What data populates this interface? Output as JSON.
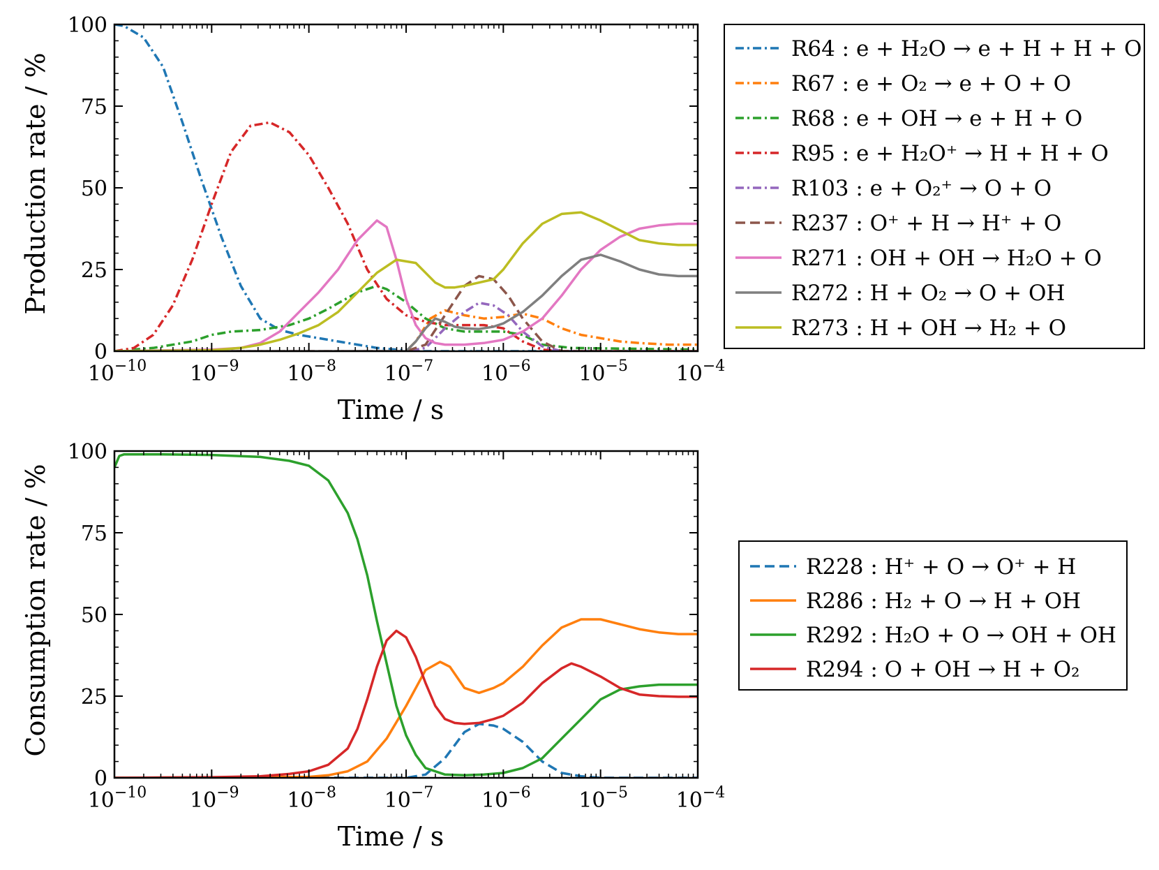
{
  "chart_data": [
    {
      "type": "line",
      "title": "",
      "xscale": "log",
      "xlabel": "Time / s",
      "ylabel": "Production rate / %",
      "xlim": [
        1e-10,
        0.0001
      ],
      "ylim": [
        0,
        100
      ],
      "xticks": [
        {
          "value": 1e-10,
          "base": "10",
          "exp": "−10"
        },
        {
          "value": 1e-09,
          "base": "10",
          "exp": "−9"
        },
        {
          "value": 1e-08,
          "base": "10",
          "exp": "−8"
        },
        {
          "value": 1e-07,
          "base": "10",
          "exp": "−7"
        },
        {
          "value": 1e-06,
          "base": "10",
          "exp": "−6"
        },
        {
          "value": 1e-05,
          "base": "10",
          "exp": "−5"
        },
        {
          "value": 0.0001,
          "base": "10",
          "exp": "−4"
        }
      ],
      "yticks": [
        {
          "value": 0,
          "label": "0"
        },
        {
          "value": 25,
          "label": "25"
        },
        {
          "value": 50,
          "label": "50"
        },
        {
          "value": 75,
          "label": "75"
        },
        {
          "value": 100,
          "label": "100"
        }
      ],
      "legend_position": "right",
      "series": [
        {
          "name": "R64",
          "label": "R64 :  e + H₂O → e + H + H + O",
          "color": "#1f77b4",
          "dash": "dashdot",
          "x": [
            -10,
            -9.9,
            -9.7,
            -9.5,
            -9.3,
            -9.1,
            -8.9,
            -8.7,
            -8.5,
            -8.3,
            -8.1,
            -7.9,
            -7.7,
            -7.5,
            -7.3,
            -7.1,
            -6.9,
            -4.0
          ],
          "y": [
            100,
            99.5,
            96,
            87,
            70,
            52,
            35,
            20,
            10,
            6.5,
            5,
            4,
            3,
            2,
            1,
            0.5,
            0,
            0
          ]
        },
        {
          "name": "R67",
          "label": "R67 :  e + O₂ → e + O + O",
          "color": "#ff7f0e",
          "dash": "dashdot",
          "x": [
            -10,
            -7.0,
            -6.9,
            -6.75,
            -6.6,
            -6.4,
            -6.2,
            -6.0,
            -5.8,
            -5.6,
            -5.4,
            -5.2,
            -5.0,
            -4.8,
            -4.6,
            -4.3,
            -4.0
          ],
          "y": [
            0,
            0,
            3,
            10,
            12.5,
            11,
            10,
            10.5,
            11.5,
            10,
            7,
            5,
            4,
            3,
            2.5,
            2,
            2
          ]
        },
        {
          "name": "R68",
          "label": "R68 :  e + OH → e + H + O",
          "color": "#2ca02c",
          "dash": "dashdot",
          "x": [
            -10,
            -9.6,
            -9.2,
            -9.0,
            -8.8,
            -8.5,
            -8.2,
            -8.0,
            -7.8,
            -7.5,
            -7.3,
            -7.2,
            -7.0,
            -6.8,
            -6.6,
            -6.4,
            -6.2,
            -6.0,
            -5.8,
            -5.6,
            -5.3,
            -4.0
          ],
          "y": [
            0,
            1,
            3,
            5,
            6,
            6.5,
            8,
            10,
            13,
            18,
            20,
            19,
            15,
            10,
            7,
            6,
            6,
            6,
            5,
            2,
            1,
            0.5
          ]
        },
        {
          "name": "R95",
          "label": "R95 :  e + H₂O⁺ → H + H + O",
          "color": "#d62728",
          "dash": "dashdot",
          "x": [
            -10,
            -9.8,
            -9.6,
            -9.4,
            -9.2,
            -9.0,
            -8.8,
            -8.6,
            -8.4,
            -8.2,
            -8.0,
            -7.8,
            -7.6,
            -7.4,
            -7.2,
            -7.0,
            -6.8,
            -6.6,
            -6.4,
            -6.2,
            -6.0,
            -5.8,
            -5.6,
            -5.4,
            -4.0
          ],
          "y": [
            0,
            1,
            5,
            14,
            28,
            45,
            61,
            69,
            70,
            67,
            60,
            50,
            39,
            25,
            16,
            11,
            9,
            8,
            8,
            8,
            7,
            3,
            0.5,
            0,
            0
          ]
        },
        {
          "name": "R103",
          "label": "R103 :  e + O₂⁺ → O + O",
          "color": "#9467bd",
          "dash": "dashdot",
          "x": [
            -10,
            -7.0,
            -6.8,
            -6.6,
            -6.4,
            -6.25,
            -6.1,
            -5.95,
            -5.8,
            -5.6,
            -5.4,
            -4.0
          ],
          "y": [
            0,
            0,
            1,
            7,
            12,
            14.8,
            14,
            11,
            6,
            1.5,
            0,
            0
          ]
        },
        {
          "name": "R237",
          "label": "R237 :  O⁺ + H → H⁺ + O",
          "color": "#8c564b",
          "dash": "dashed",
          "x": [
            -10,
            -7.0,
            -6.8,
            -6.6,
            -6.4,
            -6.25,
            -6.1,
            -5.95,
            -5.8,
            -5.6,
            -5.4,
            -4.0
          ],
          "y": [
            0,
            0,
            2,
            11,
            20,
            23,
            22,
            17,
            10,
            3,
            0,
            0
          ]
        },
        {
          "name": "R271",
          "label": "R271 :  OH + OH → H₂O + O",
          "color": "#e377c2",
          "dash": "solid",
          "x": [
            -10,
            -9.0,
            -8.7,
            -8.5,
            -8.3,
            -8.1,
            -7.9,
            -7.7,
            -7.5,
            -7.3,
            -7.2,
            -7.1,
            -7.0,
            -6.9,
            -6.8,
            -6.7,
            -6.6,
            -6.4,
            -6.2,
            -6.0,
            -5.8,
            -5.6,
            -5.4,
            -5.2,
            -5.0,
            -4.8,
            -4.6,
            -4.4,
            -4.2,
            -4.0
          ],
          "y": [
            0,
            0.5,
            1,
            2.5,
            6,
            12,
            18,
            25,
            34,
            40,
            38,
            28,
            16,
            8,
            4,
            2.5,
            2,
            2,
            2.5,
            3.5,
            6,
            10,
            17,
            25,
            31,
            35,
            37.5,
            38.5,
            39,
            39
          ]
        },
        {
          "name": "R272",
          "label": "R272 :  H + O₂ → O + OH",
          "color": "#7f7f7f",
          "dash": "solid",
          "x": [
            -10,
            -7.0,
            -6.9,
            -6.8,
            -6.7,
            -6.6,
            -6.5,
            -6.4,
            -6.25,
            -6.1,
            -6.0,
            -5.8,
            -5.6,
            -5.4,
            -5.2,
            -5.0,
            -4.8,
            -4.6,
            -4.4,
            -4.2,
            -4.0
          ],
          "y": [
            0,
            0,
            3,
            7,
            10,
            9,
            7.5,
            7,
            6.8,
            7.5,
            8.5,
            12,
            17,
            23,
            28,
            29.5,
            27.5,
            25,
            23.5,
            23,
            23
          ]
        },
        {
          "name": "R273",
          "label": "R273 :  H + OH → H₂ + O",
          "color": "#bcbd22",
          "dash": "solid",
          "x": [
            -10,
            -9.0,
            -8.7,
            -8.5,
            -8.3,
            -8.1,
            -7.9,
            -7.7,
            -7.5,
            -7.3,
            -7.1,
            -6.9,
            -6.8,
            -6.7,
            -6.6,
            -6.5,
            -6.4,
            -6.25,
            -6.1,
            -6.0,
            -5.8,
            -5.6,
            -5.4,
            -5.2,
            -5.0,
            -4.8,
            -4.6,
            -4.4,
            -4.2,
            -4.0
          ],
          "y": [
            0,
            0.3,
            1,
            2,
            3.5,
            5.5,
            8,
            12,
            18,
            24,
            28,
            27,
            24,
            21,
            19.5,
            19.5,
            20,
            21,
            22,
            25,
            33,
            39,
            42,
            42.5,
            40,
            37,
            34,
            33,
            32.5,
            32.5
          ]
        }
      ]
    },
    {
      "type": "line",
      "title": "",
      "xscale": "log",
      "xlabel": "Time / s",
      "ylabel": "Consumption rate / %",
      "xlim": [
        1e-10,
        0.0001
      ],
      "ylim": [
        0,
        100
      ],
      "xticks": [
        {
          "value": 1e-10,
          "base": "10",
          "exp": "−10"
        },
        {
          "value": 1e-09,
          "base": "10",
          "exp": "−9"
        },
        {
          "value": 1e-08,
          "base": "10",
          "exp": "−8"
        },
        {
          "value": 1e-07,
          "base": "10",
          "exp": "−7"
        },
        {
          "value": 1e-06,
          "base": "10",
          "exp": "−6"
        },
        {
          "value": 1e-05,
          "base": "10",
          "exp": "−5"
        },
        {
          "value": 0.0001,
          "base": "10",
          "exp": "−4"
        }
      ],
      "yticks": [
        {
          "value": 0,
          "label": "0"
        },
        {
          "value": 25,
          "label": "25"
        },
        {
          "value": 50,
          "label": "50"
        },
        {
          "value": 75,
          "label": "75"
        },
        {
          "value": 100,
          "label": "100"
        }
      ],
      "legend_position": "right",
      "series": [
        {
          "name": "R228",
          "label": "R228 :  H⁺ + O → O⁺ + H",
          "color": "#1f77b4",
          "dash": "dashed",
          "x": [
            -10,
            -7.0,
            -6.8,
            -6.6,
            -6.4,
            -6.25,
            -6.1,
            -6.0,
            -5.8,
            -5.6,
            -5.4,
            -5.2,
            -5.0,
            -4.0
          ],
          "y": [
            0,
            0,
            1,
            6,
            14,
            16.5,
            16,
            15,
            11,
            5,
            1.5,
            0.5,
            0,
            0
          ]
        },
        {
          "name": "R286",
          "label": "R286 :  H₂ + O → H + OH",
          "color": "#ff7f0e",
          "dash": "solid",
          "x": [
            -10,
            -8.0,
            -7.8,
            -7.6,
            -7.4,
            -7.2,
            -7.0,
            -6.8,
            -6.65,
            -6.55,
            -6.4,
            -6.25,
            -6.1,
            -6.0,
            -5.8,
            -5.6,
            -5.4,
            -5.2,
            -5.0,
            -4.8,
            -4.6,
            -4.4,
            -4.2,
            -4.0
          ],
          "y": [
            0,
            0.3,
            0.8,
            2,
            5,
            12,
            22,
            33,
            35.5,
            34,
            27.5,
            26,
            27.5,
            29,
            34,
            40.5,
            46,
            48.5,
            48.5,
            47,
            45.5,
            44.5,
            44,
            44
          ]
        },
        {
          "name": "R292",
          "label": "R292 :  H₂O + O → OH + OH",
          "color": "#2ca02c",
          "dash": "solid",
          "x": [
            -10,
            -9.95,
            -9.9,
            -9.5,
            -9.0,
            -8.5,
            -8.2,
            -8.0,
            -7.8,
            -7.6,
            -7.5,
            -7.4,
            -7.3,
            -7.2,
            -7.1,
            -7.0,
            -6.9,
            -6.8,
            -6.6,
            -6.4,
            -6.2,
            -6.0,
            -5.8,
            -5.6,
            -5.4,
            -5.2,
            -5.0,
            -4.8,
            -4.6,
            -4.4,
            -4.2,
            -4.0
          ],
          "y": [
            95,
            98.5,
            99,
            99,
            98.8,
            98.2,
            97,
            95.5,
            91,
            81,
            73,
            62,
            48,
            35,
            22,
            13,
            7,
            3,
            1,
            0.8,
            1,
            1.5,
            3,
            6,
            12,
            18,
            24,
            27,
            28,
            28.5,
            28.5,
            28.5
          ]
        },
        {
          "name": "R294",
          "label": "R294 :  O + OH → H + O₂",
          "color": "#d62728",
          "dash": "solid",
          "x": [
            -10,
            -9.0,
            -8.5,
            -8.2,
            -8.0,
            -7.8,
            -7.6,
            -7.5,
            -7.4,
            -7.3,
            -7.2,
            -7.1,
            -7.0,
            -6.9,
            -6.8,
            -6.7,
            -6.6,
            -6.5,
            -6.4,
            -6.25,
            -6.1,
            -6.0,
            -5.8,
            -5.6,
            -5.4,
            -5.3,
            -5.2,
            -5.0,
            -4.8,
            -4.6,
            -4.4,
            -4.2,
            -4.0
          ],
          "y": [
            0,
            0.2,
            0.5,
            1.2,
            2,
            4,
            9,
            15,
            24,
            34,
            42,
            45,
            43,
            37,
            29,
            22,
            18,
            16.8,
            16.5,
            16.8,
            18,
            19,
            23,
            29,
            33.5,
            35,
            34,
            31,
            27.5,
            25.5,
            25,
            24.8,
            24.8
          ]
        }
      ]
    }
  ]
}
